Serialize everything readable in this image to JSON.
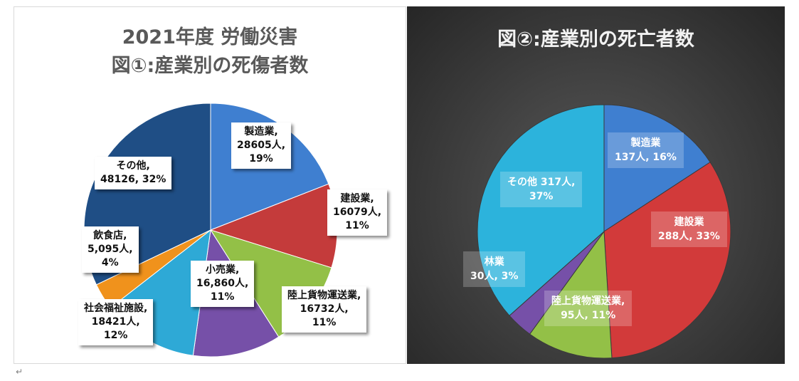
{
  "chart_data": [
    {
      "type": "pie",
      "title": "2021年度 労働災害",
      "subtitle": "図①:産業別の死傷者数",
      "slices": [
        {
          "name": "製造業",
          "value": 28605,
          "percent": 19,
          "color": "#3f7fd0",
          "label_lines": [
            "製造業,",
            "28605人,",
            "19%"
          ]
        },
        {
          "name": "建設業",
          "value": 16079,
          "percent": 11,
          "color": "#c43b3b",
          "label_lines": [
            "建設業,",
            "16079人,",
            "11%"
          ]
        },
        {
          "name": "陸上貨物運送業",
          "value": 16732,
          "percent": 11,
          "color": "#93c047",
          "label_lines": [
            "陸上貨物運送業,",
            "16732人,",
            "11%"
          ]
        },
        {
          "name": "小売業",
          "value": 16860,
          "percent": 11,
          "color": "#7650a8",
          "label_lines": [
            "小売業,",
            "16,860人,",
            "11%"
          ]
        },
        {
          "name": "社会福祉施設",
          "value": 18421,
          "percent": 12,
          "color": "#2ea9d6",
          "label_lines": [
            "社会福祉施設,",
            "18421人,",
            "12%"
          ]
        },
        {
          "name": "飲食店",
          "value": 5095,
          "percent": 4,
          "color": "#f0921c",
          "label_lines": [
            "飲食店,",
            "5,095人,",
            "4%"
          ]
        },
        {
          "name": "その他",
          "value": 48126,
          "percent": 32,
          "color": "#1f4e85",
          "label_lines": [
            "その他,",
            "48126, 32%"
          ]
        }
      ]
    },
    {
      "type": "pie",
      "title": "図②:産業別の死亡者数",
      "slices": [
        {
          "name": "製造業",
          "value": 137,
          "percent": 16,
          "color": "#3f7fd0",
          "label_lines": [
            "製造業",
            "137人, 16%"
          ]
        },
        {
          "name": "建設業",
          "value": 288,
          "percent": 33,
          "color": "#d23a3a",
          "label_lines": [
            "建設業",
            "288人, 33%"
          ]
        },
        {
          "name": "陸上貨物運送業",
          "value": 95,
          "percent": 11,
          "color": "#93c047",
          "label_lines": [
            "陸上貨物運送業,",
            "95人, 11%"
          ]
        },
        {
          "name": "林業",
          "value": 30,
          "percent": 3,
          "color": "#7650a8",
          "label_lines": [
            "林業",
            "30人, 3%"
          ]
        },
        {
          "name": "その他",
          "value": 317,
          "percent": 37,
          "color": "#2cb3dc",
          "label_lines": [
            "その他 317人,",
            "37%"
          ]
        }
      ]
    }
  ],
  "footer": {
    "return_mark": "↵"
  }
}
